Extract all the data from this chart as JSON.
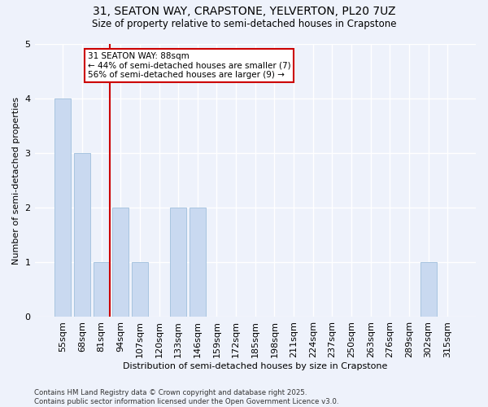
{
  "title1": "31, SEATON WAY, CRAPSTONE, YELVERTON, PL20 7UZ",
  "title2": "Size of property relative to semi-detached houses in Crapstone",
  "xlabel": "Distribution of semi-detached houses by size in Crapstone",
  "ylabel": "Number of semi-detached properties",
  "categories": [
    "55sqm",
    "68sqm",
    "81sqm",
    "94sqm",
    "107sqm",
    "120sqm",
    "133sqm",
    "146sqm",
    "159sqm",
    "172sqm",
    "185sqm",
    "198sqm",
    "211sqm",
    "224sqm",
    "237sqm",
    "250sqm",
    "263sqm",
    "276sqm",
    "289sqm",
    "302sqm",
    "315sqm"
  ],
  "values": [
    4,
    3,
    1,
    2,
    1,
    0,
    2,
    2,
    0,
    0,
    0,
    0,
    0,
    0,
    0,
    0,
    0,
    0,
    0,
    1,
    0
  ],
  "bar_color": "#c9d9f0",
  "bar_edge_color": "#a8c4e0",
  "vline_color": "#cc0000",
  "annotation_text": "31 SEATON WAY: 88sqm\n← 44% of semi-detached houses are smaller (7)\n56% of semi-detached houses are larger (9) →",
  "annotation_box_color": "white",
  "annotation_box_edge": "#cc0000",
  "ylim": [
    0,
    5
  ],
  "yticks": [
    0,
    1,
    2,
    3,
    4,
    5
  ],
  "background_color": "#eef2fb",
  "grid_color": "white",
  "footer1": "Contains HM Land Registry data © Crown copyright and database right 2025.",
  "footer2": "Contains public sector information licensed under the Open Government Licence v3.0."
}
